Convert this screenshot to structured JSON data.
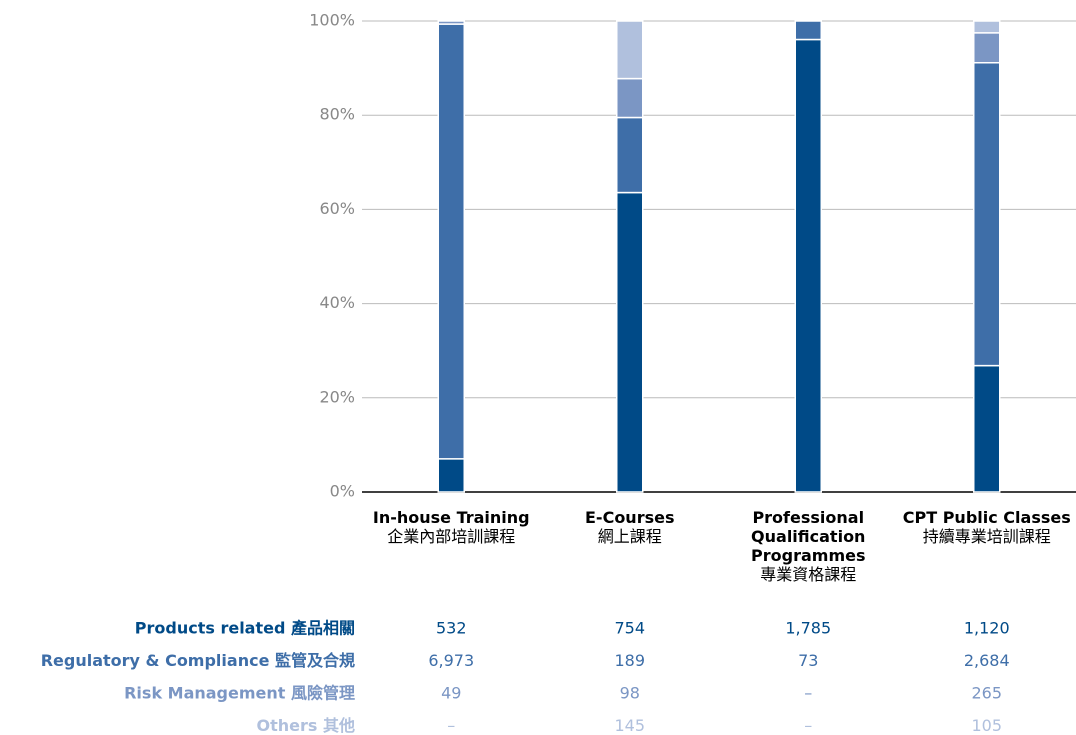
{
  "chart_data": {
    "type": "stacked_percent_bar",
    "categories": [
      "In-house Training",
      "E-Courses",
      "Professional Qualification Programmes",
      "CPT Public Classes"
    ],
    "categories_zh": [
      "企業內部培訓課程",
      "網上課程",
      "專業資格課程",
      "持續專業培訓課程"
    ],
    "series": [
      {
        "name": "Products related 產品相關",
        "color": "#004a87",
        "values": [
          532,
          754,
          1785,
          1120
        ],
        "value_labels": [
          "532",
          "754",
          "1,785",
          "1,120"
        ]
      },
      {
        "name": "Regulatory & Compliance 監管及合規",
        "color": "#3e6ea8",
        "values": [
          6973,
          189,
          73,
          2684
        ],
        "value_labels": [
          "6,973",
          "189",
          "73",
          "2,684"
        ]
      },
      {
        "name": "Risk Management 風險管理",
        "color": "#7b96c4",
        "values": [
          49,
          98,
          null,
          265
        ],
        "value_labels": [
          "49",
          "98",
          "–",
          "265"
        ]
      },
      {
        "name": "Others 其他",
        "color": "#b0c0dd",
        "values": [
          null,
          145,
          null,
          105
        ],
        "value_labels": [
          "–",
          "145",
          "–",
          "105"
        ]
      }
    ],
    "ylim": [
      0,
      100
    ],
    "yticks": [
      {
        "value": 0,
        "label": "0%"
      },
      {
        "value": 20,
        "label": "20%"
      },
      {
        "value": 40,
        "label": "40%"
      },
      {
        "value": 60,
        "label": "60%"
      },
      {
        "value": 80,
        "label": "80%"
      },
      {
        "value": 100,
        "label": "100%"
      }
    ],
    "grid": true
  }
}
